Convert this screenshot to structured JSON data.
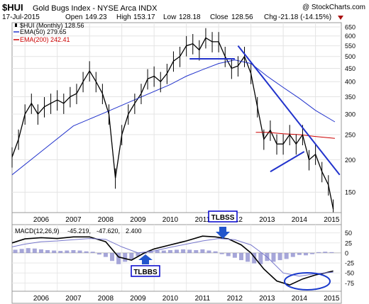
{
  "header": {
    "symbol": "$HUI",
    "name": "Gold Bugs Index - NYSE Arca INDX",
    "watermark": "@ StockCharts.com",
    "date": "17-Jul-2015",
    "open_label": "Open",
    "open": "149.23",
    "high_label": "High",
    "high": "153.17",
    "low_label": "Low",
    "low": "128.18",
    "close_label": "Close",
    "close": "128.56",
    "chg_label": "Chg",
    "chg": "-21.18 (-14.15%)"
  },
  "legend": {
    "price": "$HUI (Monthly) 128.56",
    "ema50": "EMA(50) 279.65",
    "ema200": "EMA(200) 242.41"
  },
  "macd_legend": {
    "label": "MACD(12,26,9)",
    "macd": "-45.219,",
    "signal": "-47.620,",
    "hist": "2.400"
  },
  "annotations": {
    "tlbss": "TLBSS",
    "tlbbs": "TLBBS"
  },
  "colors": {
    "price": "#000000",
    "ema50": "#2233cc",
    "ema200": "#cc0000",
    "macd": "#000000",
    "signal": "#7777cc",
    "histogram": "#8888cc",
    "trendline": "#2233cc",
    "annotation_box": "#0000cc"
  },
  "chart_data": [
    {
      "type": "line",
      "title": "Gold Bugs Index - NYSE Arca INDX",
      "scale": "log",
      "ylim": [
        130,
        650
      ],
      "y_ticks": [
        "650",
        "600",
        "550",
        "500",
        "450",
        "400",
        "350",
        "300",
        "250",
        "200",
        "150"
      ],
      "x_ticks": [
        "2006",
        "2007",
        "2008",
        "2009",
        "2010",
        "2011",
        "2012",
        "2013",
        "2014",
        "2015"
      ],
      "x_range": [
        2005.6,
        2015.8
      ],
      "series": [
        {
          "name": "$HUI (Monthly) 128.56",
          "x": [
            2005.6,
            2005.8,
            2006.0,
            2006.2,
            2006.4,
            2006.6,
            2006.8,
            2007.0,
            2007.2,
            2007.4,
            2007.6,
            2007.8,
            2008.0,
            2008.2,
            2008.4,
            2008.6,
            2008.8,
            2009.0,
            2009.2,
            2009.4,
            2009.6,
            2009.8,
            2010.0,
            2010.2,
            2010.4,
            2010.6,
            2010.8,
            2011.0,
            2011.2,
            2011.4,
            2011.6,
            2011.8,
            2012.0,
            2012.2,
            2012.4,
            2012.6,
            2012.8,
            2013.0,
            2013.2,
            2013.4,
            2013.6,
            2013.8,
            2014.0,
            2014.2,
            2014.4,
            2014.6,
            2014.8,
            2015.0,
            2015.2,
            2015.4,
            2015.55
          ],
          "values": [
            205,
            240,
            300,
            330,
            300,
            320,
            330,
            340,
            330,
            350,
            360,
            400,
            440,
            400,
            360,
            300,
            170,
            250,
            300,
            330,
            360,
            410,
            420,
            400,
            430,
            480,
            500,
            550,
            560,
            530,
            590,
            570,
            570,
            500,
            450,
            460,
            500,
            430,
            320,
            240,
            260,
            230,
            230,
            250,
            230,
            250,
            200,
            210,
            180,
            160,
            129
          ]
        },
        {
          "name": "EMA(50) 279.65",
          "x": [
            2005.6,
            2006.5,
            2007.5,
            2008.5,
            2009.5,
            2010.5,
            2011.0,
            2011.5,
            2012.0,
            2012.5,
            2013.0,
            2013.5,
            2014.0,
            2014.5,
            2015.0,
            2015.6
          ],
          "values": [
            175,
            215,
            270,
            305,
            345,
            390,
            420,
            445,
            470,
            485,
            470,
            420,
            380,
            345,
            310,
            280
          ]
        },
        {
          "name": "EMA(200) 242.41",
          "x": [
            2013.15,
            2013.5,
            2014.0,
            2014.5,
            2015.0,
            2015.6
          ],
          "values": [
            255,
            255,
            252,
            250,
            246,
            242
          ]
        }
      ],
      "trendlines": [
        {
          "x": [
            2011.1,
            2012.5
          ],
          "values": [
            490,
            490
          ]
        },
        {
          "x": [
            2012.6,
            2015.75
          ],
          "values": [
            550,
            175
          ]
        },
        {
          "x": [
            2013.6,
            2014.65
          ],
          "values": [
            180,
            215
          ]
        }
      ]
    },
    {
      "type": "line",
      "title": "MACD(12,26,9) -45.219, -47.620, 2.400",
      "ylim": [
        -85,
        60
      ],
      "y_ticks": [
        "50",
        "25",
        "0",
        "-25",
        "-50",
        "-75"
      ],
      "x_ticks": [
        "2006",
        "2007",
        "2008",
        "2009",
        "2010",
        "2011",
        "2012",
        "2013",
        "2014",
        "2015"
      ],
      "x_range": [
        2005.6,
        2015.8
      ],
      "series": [
        {
          "name": "MACD",
          "x": [
            2005.6,
            2006.0,
            2006.5,
            2007.0,
            2007.5,
            2008.0,
            2008.5,
            2008.9,
            2009.3,
            2009.7,
            2010.0,
            2010.5,
            2011.0,
            2011.5,
            2011.9,
            2012.3,
            2012.7,
            2013.0,
            2013.4,
            2013.8,
            2014.2,
            2014.6,
            2015.0,
            2015.3,
            2015.55
          ],
          "values": [
            25,
            35,
            38,
            36,
            40,
            40,
            28,
            -10,
            -18,
            0,
            10,
            20,
            30,
            42,
            40,
            35,
            20,
            0,
            -40,
            -70,
            -80,
            -65,
            -55,
            -50,
            -45
          ]
        },
        {
          "name": "Signal",
          "x": [
            2005.6,
            2006.0,
            2006.5,
            2007.0,
            2007.5,
            2008.0,
            2008.5,
            2009.0,
            2009.5,
            2010.0,
            2010.5,
            2011.0,
            2011.5,
            2012.0,
            2012.5,
            2013.0,
            2013.5,
            2014.0,
            2014.5,
            2015.0,
            2015.55
          ],
          "values": [
            15,
            22,
            28,
            30,
            33,
            36,
            34,
            15,
            0,
            5,
            14,
            22,
            30,
            36,
            33,
            20,
            -10,
            -50,
            -58,
            -52,
            -48
          ]
        },
        {
          "name": "Histogram",
          "x": [
            2005.7,
            2005.9,
            2006.1,
            2006.3,
            2006.5,
            2006.7,
            2006.9,
            2007.1,
            2007.3,
            2007.5,
            2007.7,
            2007.9,
            2008.1,
            2008.3,
            2008.5,
            2008.7,
            2008.9,
            2009.1,
            2009.3,
            2009.5,
            2009.7,
            2009.9,
            2010.1,
            2010.3,
            2010.5,
            2010.7,
            2010.9,
            2011.1,
            2011.3,
            2011.5,
            2011.7,
            2011.9,
            2012.1,
            2012.3,
            2012.5,
            2012.7,
            2012.9,
            2013.1,
            2013.3,
            2013.5,
            2013.7,
            2013.9,
            2014.1,
            2014.3,
            2014.5,
            2014.7,
            2014.9,
            2015.1,
            2015.3,
            2015.5
          ],
          "values": [
            8,
            10,
            12,
            11,
            9,
            7,
            6,
            5,
            6,
            7,
            6,
            4,
            3,
            -4,
            -10,
            -20,
            -28,
            -22,
            -16,
            -8,
            -2,
            3,
            6,
            6,
            7,
            8,
            9,
            8,
            7,
            9,
            6,
            4,
            -3,
            -8,
            -12,
            -18,
            -22,
            -26,
            -28,
            -20,
            -22,
            -18,
            -15,
            -10,
            -5,
            -6,
            -3,
            2,
            3,
            2
          ]
        }
      ]
    }
  ]
}
